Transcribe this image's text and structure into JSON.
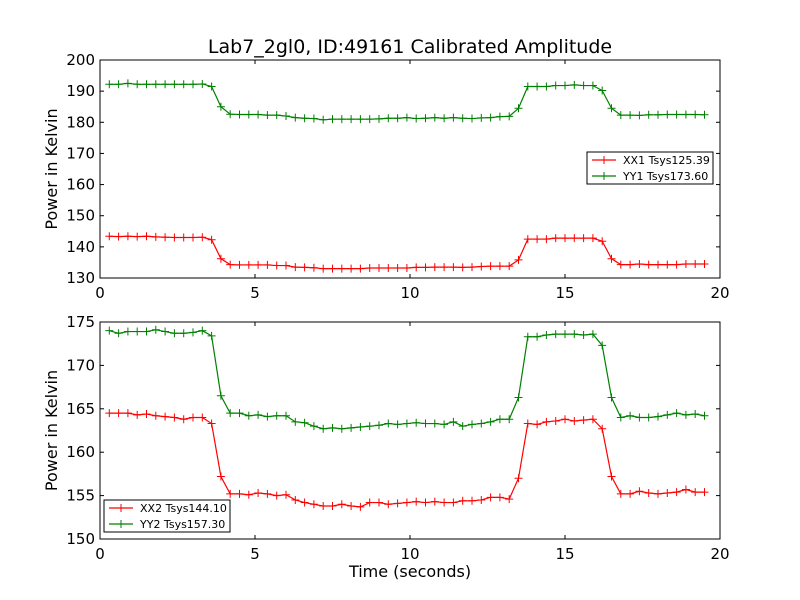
{
  "title": "Lab7_2gl0, ID:49161 Calibrated Amplitude",
  "chart_data": [
    {
      "type": "line",
      "ylabel": "Power in Kelvin",
      "xlabel": "",
      "xlim": [
        0,
        20
      ],
      "ylim": [
        130,
        200
      ],
      "xticks": [
        0,
        5,
        10,
        15,
        20
      ],
      "yticks": [
        130,
        140,
        150,
        160,
        170,
        180,
        190,
        200
      ],
      "legend_position": "center-right",
      "x": [
        0.3,
        0.6,
        0.9,
        1.2,
        1.5,
        1.8,
        2.1,
        2.4,
        2.7,
        3.0,
        3.3,
        3.6,
        3.9,
        4.2,
        4.5,
        4.8,
        5.1,
        5.4,
        5.7,
        6.0,
        6.3,
        6.6,
        6.9,
        7.2,
        7.5,
        7.8,
        8.1,
        8.4,
        8.7,
        9.0,
        9.3,
        9.6,
        9.9,
        10.2,
        10.5,
        10.8,
        11.1,
        11.4,
        11.7,
        12.0,
        12.3,
        12.6,
        12.9,
        13.2,
        13.5,
        13.8,
        14.1,
        14.4,
        14.7,
        15.0,
        15.3,
        15.6,
        15.9,
        16.2,
        16.5,
        16.8,
        17.1,
        17.4,
        17.7,
        18.0,
        18.3,
        18.6,
        18.9,
        19.2,
        19.5
      ],
      "series": [
        {
          "name": "XX1 Tsys125.39",
          "color": "#ff0000",
          "values": [
            143.4,
            143.3,
            143.4,
            143.3,
            143.4,
            143.2,
            143.1,
            143.0,
            143.0,
            143.0,
            143.1,
            142.3,
            136.2,
            134.3,
            134.2,
            134.2,
            134.2,
            134.2,
            134.0,
            134.0,
            133.5,
            133.4,
            133.3,
            133.0,
            133.0,
            133.0,
            133.0,
            133.0,
            133.2,
            133.2,
            133.2,
            133.2,
            133.2,
            133.4,
            133.4,
            133.5,
            133.5,
            133.5,
            133.4,
            133.5,
            133.7,
            133.8,
            133.8,
            133.8,
            135.8,
            142.5,
            142.5,
            142.5,
            142.8,
            142.8,
            142.8,
            142.8,
            142.8,
            141.8,
            136.2,
            134.3,
            134.3,
            134.5,
            134.3,
            134.3,
            134.3,
            134.3,
            134.5,
            134.5,
            134.5
          ]
        },
        {
          "name": "YY1 Tsys173.60",
          "color": "#008000",
          "values": [
            192.2,
            192.2,
            192.5,
            192.2,
            192.2,
            192.2,
            192.2,
            192.2,
            192.2,
            192.2,
            192.3,
            191.5,
            185.0,
            182.6,
            182.5,
            182.5,
            182.5,
            182.3,
            182.3,
            182.0,
            181.5,
            181.3,
            181.2,
            180.8,
            181.0,
            181.0,
            181.0,
            181.0,
            181.0,
            181.1,
            181.3,
            181.3,
            181.5,
            181.2,
            181.3,
            181.5,
            181.3,
            181.5,
            181.3,
            181.2,
            181.4,
            181.5,
            181.8,
            181.9,
            184.5,
            191.5,
            191.5,
            191.5,
            191.8,
            191.8,
            192.0,
            191.8,
            191.8,
            190.2,
            184.5,
            182.3,
            182.3,
            182.2,
            182.4,
            182.4,
            182.5,
            182.5,
            182.5,
            182.5,
            182.4
          ]
        }
      ]
    },
    {
      "type": "line",
      "ylabel": "Power in Kelvin",
      "xlabel": "Time (seconds)",
      "xlim": [
        0,
        20
      ],
      "ylim": [
        150,
        175
      ],
      "xticks": [
        0,
        5,
        10,
        15,
        20
      ],
      "yticks": [
        150,
        155,
        160,
        165,
        170,
        175
      ],
      "legend_position": "lower-left",
      "x": [
        0.3,
        0.6,
        0.9,
        1.2,
        1.5,
        1.8,
        2.1,
        2.4,
        2.7,
        3.0,
        3.3,
        3.6,
        3.9,
        4.2,
        4.5,
        4.8,
        5.1,
        5.4,
        5.7,
        6.0,
        6.3,
        6.6,
        6.9,
        7.2,
        7.5,
        7.8,
        8.1,
        8.4,
        8.7,
        9.0,
        9.3,
        9.6,
        9.9,
        10.2,
        10.5,
        10.8,
        11.1,
        11.4,
        11.7,
        12.0,
        12.3,
        12.6,
        12.9,
        13.2,
        13.5,
        13.8,
        14.1,
        14.4,
        14.7,
        15.0,
        15.3,
        15.6,
        15.9,
        16.2,
        16.5,
        16.8,
        17.1,
        17.4,
        17.7,
        18.0,
        18.3,
        18.6,
        18.9,
        19.2,
        19.5
      ],
      "series": [
        {
          "name": "XX2 Tsys144.10",
          "color": "#ff0000",
          "values": [
            164.5,
            164.5,
            164.5,
            164.3,
            164.4,
            164.2,
            164.1,
            164.0,
            163.8,
            164.0,
            164.0,
            163.3,
            157.2,
            155.2,
            155.2,
            155.1,
            155.3,
            155.2,
            155.0,
            155.1,
            154.5,
            154.2,
            154.0,
            153.8,
            153.8,
            154.0,
            153.8,
            153.7,
            154.2,
            154.2,
            154.0,
            154.1,
            154.2,
            154.3,
            154.2,
            154.3,
            154.2,
            154.2,
            154.4,
            154.4,
            154.5,
            154.8,
            154.8,
            154.6,
            157.0,
            163.3,
            163.2,
            163.5,
            163.6,
            163.8,
            163.6,
            163.7,
            163.8,
            162.7,
            157.2,
            155.2,
            155.2,
            155.5,
            155.3,
            155.2,
            155.3,
            155.4,
            155.7,
            155.4,
            155.4
          ]
        },
        {
          "name": "YY2 Tsys157.30",
          "color": "#008000",
          "values": [
            174.0,
            173.7,
            173.9,
            173.9,
            173.9,
            174.1,
            173.9,
            173.7,
            173.7,
            173.8,
            174.0,
            173.4,
            166.5,
            164.5,
            164.5,
            164.2,
            164.3,
            164.1,
            164.2,
            164.2,
            163.5,
            163.4,
            163.0,
            162.7,
            162.8,
            162.7,
            162.8,
            162.9,
            163.0,
            163.1,
            163.3,
            163.2,
            163.3,
            163.4,
            163.3,
            163.3,
            163.2,
            163.5,
            163.0,
            163.2,
            163.3,
            163.5,
            163.8,
            163.8,
            166.3,
            173.3,
            173.3,
            173.5,
            173.6,
            173.6,
            173.6,
            173.5,
            173.6,
            172.3,
            166.3,
            164.0,
            164.2,
            164.0,
            164.0,
            164.1,
            164.3,
            164.5,
            164.3,
            164.4,
            164.2
          ]
        }
      ]
    }
  ]
}
